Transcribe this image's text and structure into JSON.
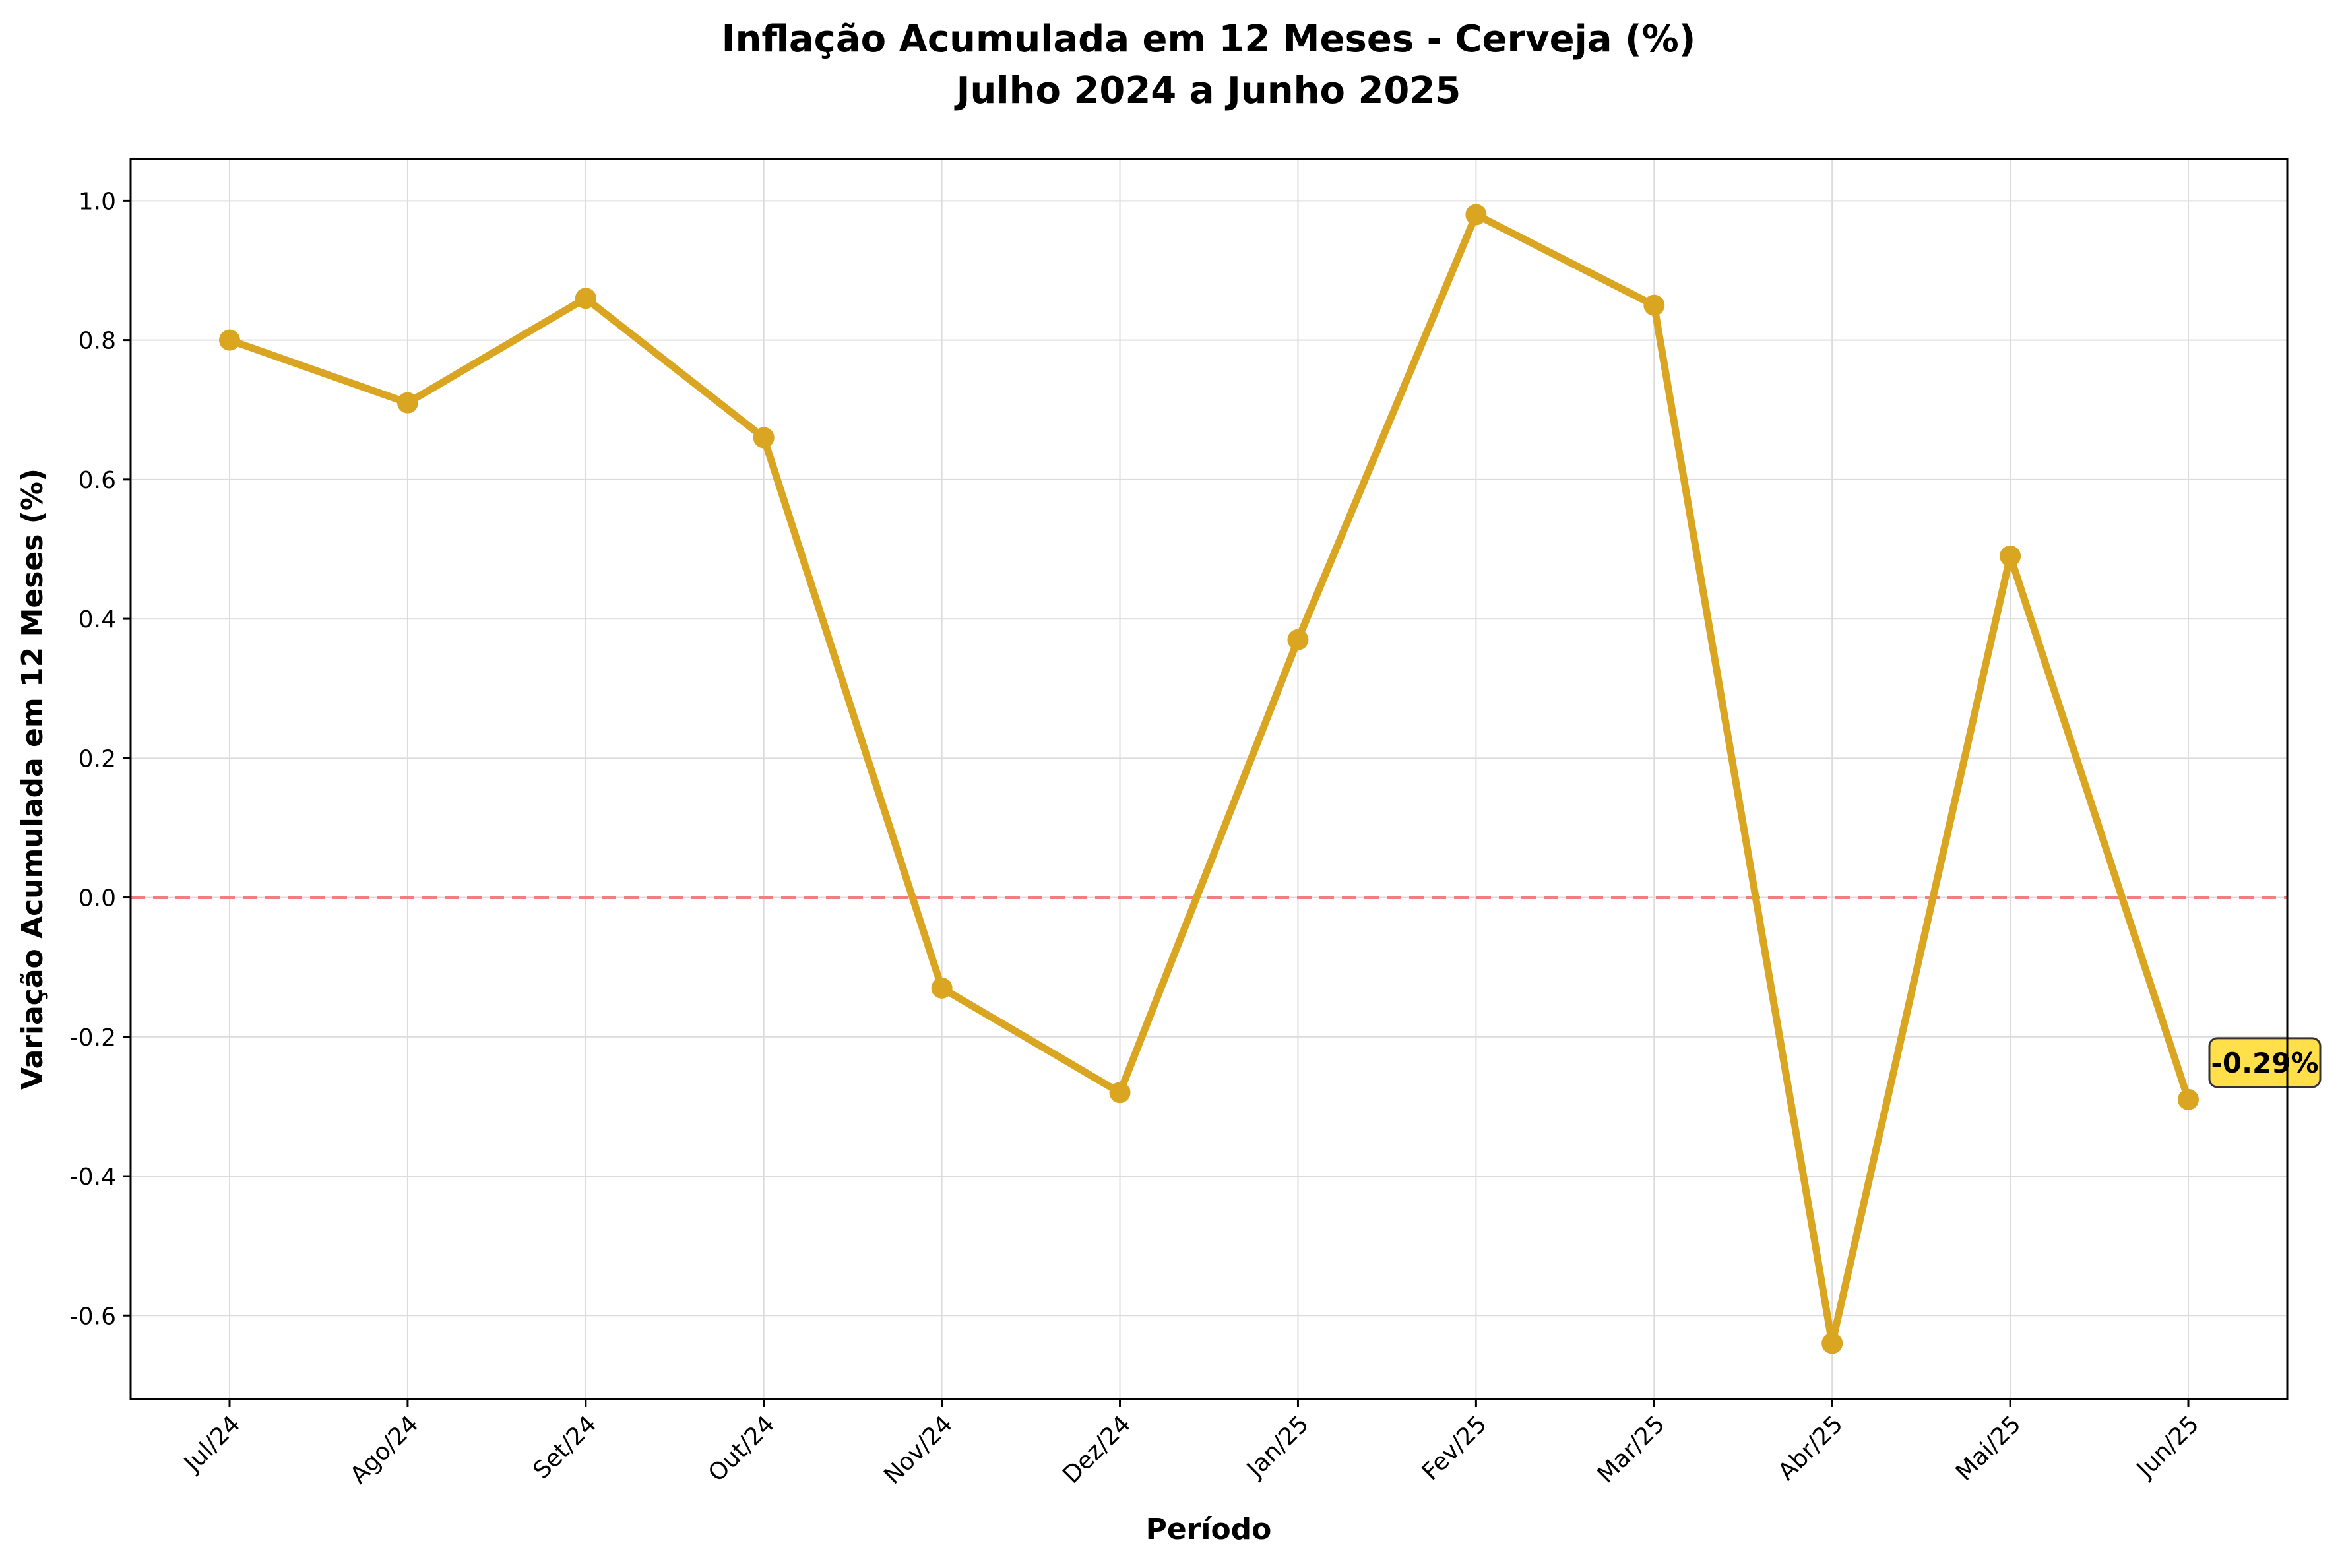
{
  "chart_data": {
    "type": "line",
    "title": [
      "Inflação Acumulada em 12 Meses - Cerveja (%)",
      "Julho 2024 a Junho 2025"
    ],
    "xlabel": "Período",
    "ylabel": "Variação Acumulada em 12 Meses (%)",
    "categories": [
      "Jul/24",
      "Ago/24",
      "Set/24",
      "Out/24",
      "Nov/24",
      "Dez/24",
      "Jan/25",
      "Fev/25",
      "Mar/25",
      "Abr/25",
      "Mai/25",
      "Jun/25"
    ],
    "series": [
      {
        "name": "Cerveja",
        "values": [
          0.8,
          0.71,
          0.86,
          0.66,
          -0.13,
          -0.28,
          0.37,
          0.98,
          0.85,
          -0.64,
          0.49,
          -0.29
        ],
        "color": "#DAA520"
      }
    ],
    "ylim": [
      -0.72,
      1.06
    ],
    "yticks": [
      1.0,
      0.8,
      0.6,
      0.4,
      0.2,
      0.0,
      -0.2,
      -0.4,
      -0.6
    ],
    "ytick_labels": [
      "1.0",
      "0.8",
      "0.6",
      "0.4",
      "0.2",
      "0.0",
      "-0.2",
      "-0.4",
      "-0.6"
    ],
    "reference_line": {
      "value": 0.0,
      "color": "#F08080",
      "style": "dashed"
    },
    "annotation": {
      "text": "-0.29%",
      "category": "Jun/25",
      "value": -0.29,
      "background": "#FFE04A"
    },
    "grid": true,
    "legend": "none"
  }
}
